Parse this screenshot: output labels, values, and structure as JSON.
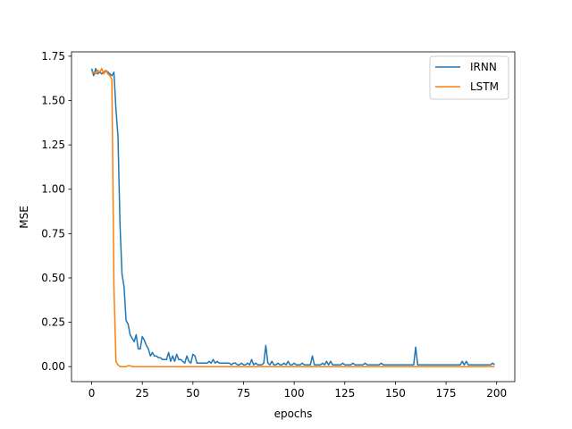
{
  "chart_data": {
    "type": "line",
    "title": "",
    "xlabel": "epochs",
    "ylabel": "MSE",
    "xlim": [
      -9.95,
      208.95
    ],
    "ylim": [
      -0.0845,
      1.7745
    ],
    "xticks": [
      0,
      25,
      50,
      75,
      100,
      125,
      150,
      175,
      200
    ],
    "yticks": [
      0.0,
      0.25,
      0.5,
      0.75,
      1.0,
      1.25,
      1.5,
      1.75
    ],
    "ytick_labels": [
      "0.00",
      "0.25",
      "0.50",
      "0.75",
      "1.00",
      "1.25",
      "1.50",
      "1.75"
    ],
    "grid": false,
    "legend_position": "top-right",
    "series": [
      {
        "name": "IRNN",
        "color": "#1f77b4",
        "points": [
          [
            0,
            1.68
          ],
          [
            1,
            1.64
          ],
          [
            2,
            1.68
          ],
          [
            3,
            1.65
          ],
          [
            4,
            1.66
          ],
          [
            5,
            1.65
          ],
          [
            6,
            1.66
          ],
          [
            7,
            1.67
          ],
          [
            8,
            1.66
          ],
          [
            9,
            1.65
          ],
          [
            10,
            1.64
          ],
          [
            11,
            1.66
          ],
          [
            12,
            1.45
          ],
          [
            13,
            1.3
          ],
          [
            14,
            0.8
          ],
          [
            15,
            0.52
          ],
          [
            16,
            0.45
          ],
          [
            17,
            0.26
          ],
          [
            18,
            0.24
          ],
          [
            19,
            0.18
          ],
          [
            20,
            0.16
          ],
          [
            21,
            0.14
          ],
          [
            22,
            0.18
          ],
          [
            23,
            0.1
          ],
          [
            24,
            0.1
          ],
          [
            25,
            0.17
          ],
          [
            26,
            0.15
          ],
          [
            27,
            0.12
          ],
          [
            28,
            0.1
          ],
          [
            29,
            0.06
          ],
          [
            30,
            0.08
          ],
          [
            31,
            0.06
          ],
          [
            32,
            0.06
          ],
          [
            33,
            0.05
          ],
          [
            34,
            0.05
          ],
          [
            35,
            0.04
          ],
          [
            36,
            0.04
          ],
          [
            37,
            0.04
          ],
          [
            38,
            0.08
          ],
          [
            39,
            0.03
          ],
          [
            40,
            0.06
          ],
          [
            41,
            0.03
          ],
          [
            42,
            0.07
          ],
          [
            43,
            0.04
          ],
          [
            44,
            0.04
          ],
          [
            45,
            0.03
          ],
          [
            46,
            0.02
          ],
          [
            47,
            0.06
          ],
          [
            48,
            0.03
          ],
          [
            49,
            0.02
          ],
          [
            50,
            0.07
          ],
          [
            51,
            0.06
          ],
          [
            52,
            0.02
          ],
          [
            53,
            0.02
          ],
          [
            54,
            0.02
          ],
          [
            55,
            0.02
          ],
          [
            56,
            0.02
          ],
          [
            57,
            0.02
          ],
          [
            58,
            0.03
          ],
          [
            59,
            0.02
          ],
          [
            60,
            0.04
          ],
          [
            61,
            0.02
          ],
          [
            62,
            0.03
          ],
          [
            63,
            0.02
          ],
          [
            64,
            0.02
          ],
          [
            65,
            0.02
          ],
          [
            66,
            0.02
          ],
          [
            67,
            0.02
          ],
          [
            68,
            0.02
          ],
          [
            69,
            0.01
          ],
          [
            70,
            0.02
          ],
          [
            71,
            0.02
          ],
          [
            72,
            0.01
          ],
          [
            73,
            0.01
          ],
          [
            74,
            0.02
          ],
          [
            75,
            0.01
          ],
          [
            76,
            0.01
          ],
          [
            77,
            0.02
          ],
          [
            78,
            0.01
          ],
          [
            79,
            0.04
          ],
          [
            80,
            0.01
          ],
          [
            81,
            0.02
          ],
          [
            82,
            0.01
          ],
          [
            83,
            0.01
          ],
          [
            84,
            0.01
          ],
          [
            85,
            0.02
          ],
          [
            86,
            0.12
          ],
          [
            87,
            0.02
          ],
          [
            88,
            0.01
          ],
          [
            89,
            0.03
          ],
          [
            90,
            0.01
          ],
          [
            91,
            0.01
          ],
          [
            92,
            0.02
          ],
          [
            93,
            0.01
          ],
          [
            94,
            0.01
          ],
          [
            95,
            0.02
          ],
          [
            96,
            0.01
          ],
          [
            97,
            0.03
          ],
          [
            98,
            0.01
          ],
          [
            99,
            0.01
          ],
          [
            100,
            0.02
          ],
          [
            101,
            0.01
          ],
          [
            102,
            0.01
          ],
          [
            103,
            0.01
          ],
          [
            104,
            0.02
          ],
          [
            105,
            0.01
          ],
          [
            106,
            0.01
          ],
          [
            107,
            0.01
          ],
          [
            108,
            0.01
          ],
          [
            109,
            0.06
          ],
          [
            110,
            0.01
          ],
          [
            111,
            0.01
          ],
          [
            112,
            0.01
          ],
          [
            113,
            0.01
          ],
          [
            114,
            0.02
          ],
          [
            115,
            0.01
          ],
          [
            116,
            0.03
          ],
          [
            117,
            0.01
          ],
          [
            118,
            0.03
          ],
          [
            119,
            0.01
          ],
          [
            120,
            0.01
          ],
          [
            121,
            0.01
          ],
          [
            122,
            0.01
          ],
          [
            123,
            0.01
          ],
          [
            124,
            0.02
          ],
          [
            125,
            0.01
          ],
          [
            126,
            0.01
          ],
          [
            127,
            0.01
          ],
          [
            128,
            0.01
          ],
          [
            129,
            0.02
          ],
          [
            130,
            0.01
          ],
          [
            131,
            0.01
          ],
          [
            132,
            0.01
          ],
          [
            133,
            0.01
          ],
          [
            134,
            0.01
          ],
          [
            135,
            0.02
          ],
          [
            136,
            0.01
          ],
          [
            137,
            0.01
          ],
          [
            138,
            0.01
          ],
          [
            139,
            0.01
          ],
          [
            140,
            0.01
          ],
          [
            141,
            0.01
          ],
          [
            142,
            0.01
          ],
          [
            143,
            0.02
          ],
          [
            144,
            0.01
          ],
          [
            145,
            0.01
          ],
          [
            146,
            0.01
          ],
          [
            147,
            0.01
          ],
          [
            148,
            0.01
          ],
          [
            149,
            0.01
          ],
          [
            150,
            0.01
          ],
          [
            151,
            0.01
          ],
          [
            152,
            0.01
          ],
          [
            153,
            0.01
          ],
          [
            154,
            0.01
          ],
          [
            155,
            0.01
          ],
          [
            156,
            0.01
          ],
          [
            157,
            0.01
          ],
          [
            158,
            0.01
          ],
          [
            159,
            0.01
          ],
          [
            160,
            0.11
          ],
          [
            161,
            0.01
          ],
          [
            162,
            0.01
          ],
          [
            163,
            0.01
          ],
          [
            164,
            0.01
          ],
          [
            165,
            0.01
          ],
          [
            166,
            0.01
          ],
          [
            167,
            0.01
          ],
          [
            168,
            0.01
          ],
          [
            169,
            0.01
          ],
          [
            170,
            0.01
          ],
          [
            171,
            0.01
          ],
          [
            172,
            0.01
          ],
          [
            173,
            0.01
          ],
          [
            174,
            0.01
          ],
          [
            175,
            0.01
          ],
          [
            176,
            0.01
          ],
          [
            177,
            0.01
          ],
          [
            178,
            0.01
          ],
          [
            179,
            0.01
          ],
          [
            180,
            0.01
          ],
          [
            181,
            0.01
          ],
          [
            182,
            0.01
          ],
          [
            183,
            0.03
          ],
          [
            184,
            0.01
          ],
          [
            185,
            0.03
          ],
          [
            186,
            0.01
          ],
          [
            187,
            0.01
          ],
          [
            188,
            0.01
          ],
          [
            189,
            0.01
          ],
          [
            190,
            0.01
          ],
          [
            191,
            0.01
          ],
          [
            192,
            0.01
          ],
          [
            193,
            0.01
          ],
          [
            194,
            0.01
          ],
          [
            195,
            0.01
          ],
          [
            196,
            0.01
          ],
          [
            197,
            0.01
          ],
          [
            198,
            0.02
          ],
          [
            199,
            0.01
          ]
        ]
      },
      {
        "name": "LSTM",
        "color": "#ff7f0e",
        "points": [
          [
            0,
            1.66
          ],
          [
            1,
            1.66
          ],
          [
            2,
            1.65
          ],
          [
            3,
            1.67
          ],
          [
            4,
            1.66
          ],
          [
            5,
            1.68
          ],
          [
            6,
            1.65
          ],
          [
            7,
            1.67
          ],
          [
            8,
            1.65
          ],
          [
            9,
            1.64
          ],
          [
            10,
            1.62
          ],
          [
            11,
            0.45
          ],
          [
            12,
            0.03
          ],
          [
            13,
            0.01
          ],
          [
            14,
            0.0
          ],
          [
            15,
            0.0
          ],
          [
            16,
            0.0
          ],
          [
            17,
            0.0
          ],
          [
            18,
            0.005
          ],
          [
            19,
            0.005
          ],
          [
            20,
            0.0
          ],
          [
            21,
            0.0
          ],
          [
            22,
            0.0
          ],
          [
            23,
            0.0
          ],
          [
            24,
            0.0
          ],
          [
            25,
            0.0
          ],
          [
            30,
            0.0
          ],
          [
            40,
            0.0
          ],
          [
            50,
            0.0
          ],
          [
            60,
            0.0
          ],
          [
            70,
            0.0
          ],
          [
            80,
            0.0
          ],
          [
            90,
            0.0
          ],
          [
            100,
            0.0
          ],
          [
            110,
            0.0
          ],
          [
            120,
            0.0
          ],
          [
            130,
            0.0
          ],
          [
            140,
            0.0
          ],
          [
            150,
            0.0
          ],
          [
            160,
            0.0
          ],
          [
            170,
            0.0
          ],
          [
            180,
            0.0
          ],
          [
            190,
            0.0
          ],
          [
            199,
            0.0
          ]
        ]
      }
    ]
  }
}
